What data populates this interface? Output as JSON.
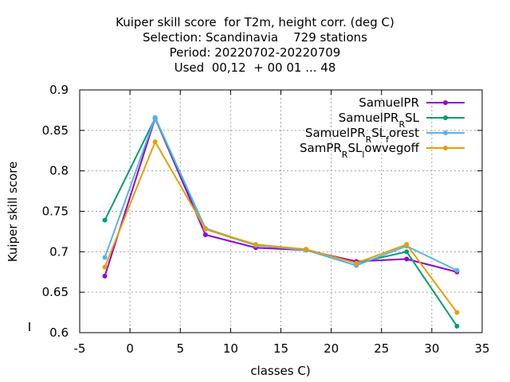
{
  "chart_data": {
    "type": "line",
    "title_lines": [
      "Kuiper skill score  for T2m, height corr. (deg C)",
      "Selection: Scandinavia    729 stations",
      "Period: 20220702-20220709",
      "Used  00,12  + 00 01 ... 48"
    ],
    "xlabel": "classes C)",
    "ylabel": "Kuiper skill score",
    "xlim": [
      -5,
      35
    ],
    "ylim": [
      0.6,
      0.9
    ],
    "x_ticks": [
      -5,
      0,
      5,
      10,
      15,
      20,
      25,
      30,
      35
    ],
    "y_ticks": [
      0.6,
      0.65,
      0.7,
      0.75,
      0.8,
      0.85,
      0.9
    ],
    "x_tick_labels": [
      "-5",
      "0",
      "5",
      "10",
      "15",
      "20",
      "25",
      "30",
      "35"
    ],
    "y_tick_labels": [
      "0.6",
      "0.65",
      "0.7",
      "0.75",
      "0.8",
      "0.85",
      "0.9"
    ],
    "grid": true,
    "legend_position": "top-right",
    "x": [
      -2.5,
      2.5,
      7.5,
      12.5,
      17.5,
      22.5,
      27.5,
      32.5
    ],
    "series": [
      {
        "name_parts": [
          {
            "t": "SamuelPR"
          }
        ],
        "color": "#9400d3",
        "values": [
          0.67,
          0.865,
          0.721,
          0.705,
          0.702,
          0.688,
          0.691,
          0.675
        ]
      },
      {
        "name_parts": [
          {
            "t": "SamuelPR"
          },
          {
            "t": "R",
            "sub": true
          },
          {
            "t": "SL"
          }
        ],
        "color": "#009e73",
        "values": [
          0.739,
          0.865,
          0.728,
          0.708,
          0.703,
          0.686,
          0.7,
          0.608
        ]
      },
      {
        "name_parts": [
          {
            "t": "SamuelPR"
          },
          {
            "t": "R",
            "sub": true
          },
          {
            "t": "SL"
          },
          {
            "t": "f",
            "sub": true
          },
          {
            "t": "orest"
          }
        ],
        "color": "#56b4e9",
        "values": [
          0.693,
          0.866,
          0.729,
          0.708,
          0.702,
          0.683,
          0.707,
          0.677
        ]
      },
      {
        "name_parts": [
          {
            "t": "SamPR"
          },
          {
            "t": "R",
            "sub": true
          },
          {
            "t": "SL"
          },
          {
            "t": "l",
            "sub": true
          },
          {
            "t": "owvegoff"
          }
        ],
        "color": "#e69f00",
        "values": [
          0.681,
          0.836,
          0.728,
          0.709,
          0.703,
          0.686,
          0.709,
          0.625
        ]
      }
    ]
  }
}
